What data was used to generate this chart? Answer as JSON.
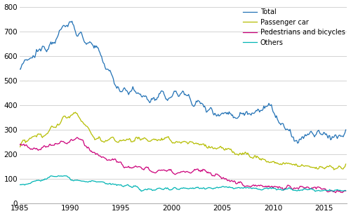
{
  "xlim": [
    1985.0,
    2017.3
  ],
  "ylim": [
    0,
    800
  ],
  "yticks": [
    0,
    100,
    200,
    300,
    400,
    500,
    600,
    700,
    800
  ],
  "xticks": [
    1985,
    1990,
    1995,
    2000,
    2005,
    2010,
    2015
  ],
  "colors": {
    "Total": "#2171b5",
    "Passenger car": "#b5bd00",
    "Pedestrians and bicycles": "#cc007a",
    "Others": "#00b4b4"
  },
  "legend_labels": [
    "Total",
    "Passenger car",
    "Pedestrians and bicycles",
    "Others"
  ],
  "background_color": "#ffffff",
  "grid_color": "#cccccc",
  "linewidth": 0.9
}
